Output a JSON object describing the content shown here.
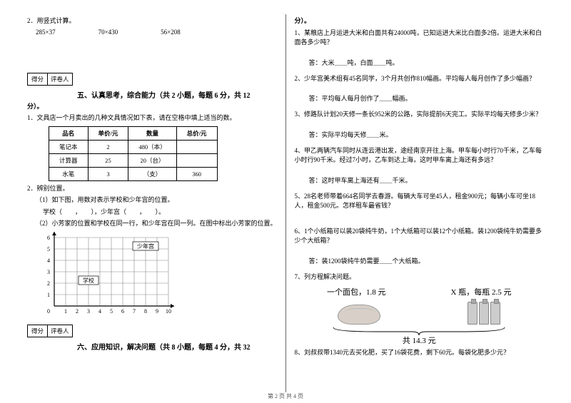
{
  "left": {
    "q2": "2．用竖式计算。",
    "mults": [
      "285×37",
      "70×430",
      "56×208"
    ],
    "score_labels": [
      "得分",
      "评卷人"
    ],
    "sec5_title": "五、认真思考，综合能力（共 2 小题，每题 6 分，共 12",
    "sec5_title2": "分）。",
    "q5_1": "1．文具店一个月卖出的几种文具情况如下表，请在空格中填上适当的数。",
    "table": {
      "headers": [
        "品名",
        "单价/元",
        "数量",
        "总价/元"
      ],
      "rows": [
        [
          "笔记本",
          "2",
          "480（本）",
          ""
        ],
        [
          "计算器",
          "25",
          "20（台）",
          ""
        ],
        [
          "水笔",
          "3",
          "（支）",
          "360"
        ]
      ]
    },
    "q5_2": "2．辨别位置。",
    "q5_2_1": "（1）如下图，用数对表示学校和少年宫的位置。",
    "q5_2_1b": "学校（　　，　　），少年宫（　　，　　）。",
    "q5_2_2": "（2）小芳家的位置和学校在同一行，和少年宫在同一列。在图中标出小芳家的位置。",
    "grid": {
      "cols": 10,
      "rows": 6,
      "x_labels": [
        "1",
        "2",
        "3",
        "4",
        "5",
        "6",
        "7",
        "8",
        "9",
        "10"
      ],
      "y_labels": [
        "1",
        "2",
        "3",
        "4",
        "5",
        "6"
      ],
      "school_label": "学校",
      "school_pos": [
        3,
        2
      ],
      "palace_label": "少年宫",
      "palace_pos": [
        8,
        5
      ],
      "cell": 16,
      "axis_color": "#000",
      "grid_color": "#888"
    },
    "sec6_title": "六、应用知识，解决问题（共 8 小题，每题 4 分，共 32"
  },
  "right": {
    "sec6_title2": "分）。",
    "q1": "1、某粮店上月运进大米和白面共有24000吨，已知运进大米比白面多2倍。运进大米和白面各多少吨？",
    "a1": "答：大米＿＿吨，白面＿＿吨。",
    "q2": "2、少年宫美术组有45名同学，3个月共创作810幅画。平均每人每月创作了多少幅画？",
    "a2": "答：平均每人每月创作了＿＿幅画。",
    "q3": "3、修路队计划20天修一条长952米的公路，实际提前6天完工。实际平均每天修多少米？",
    "a3": "答：实际平均每天修＿＿米。",
    "q4": "4、甲乙两辆汽车同时从连云港出发，途经南京开往上海。甲车每小时行70千米，乙车每小时行90千米。经过7小时，乙车到达上海，这时甲车离上海还有多远？",
    "a4": "答：这时甲车离上海还有＿＿千米。",
    "q5": "5、28名老师带着664名同学去春游。每辆大车可坐45人，租金900元；每辆小车可坐18人，租金500元。怎样租车最省钱？",
    "q6": "6、1个小纸箱可以装20袋纯牛奶，1个大纸箱可以装12个小纸箱。装1200袋纯牛奶需要多少个大纸箱？",
    "a6": "答：装1200袋纯牛奶需要＿＿个大纸箱。",
    "q7": "7、列方程解决问题。",
    "eq_left": "一个面包，1.8 元",
    "eq_right": "X 瓶，每瓶 2.5 元",
    "eq_total": "共 14.3 元",
    "q8": "8、刘叔叔带1340元去买化肥，买了16袋花费，剩下60元。每袋化肥多少元？"
  },
  "footer": "第 2 页 共 4 页"
}
